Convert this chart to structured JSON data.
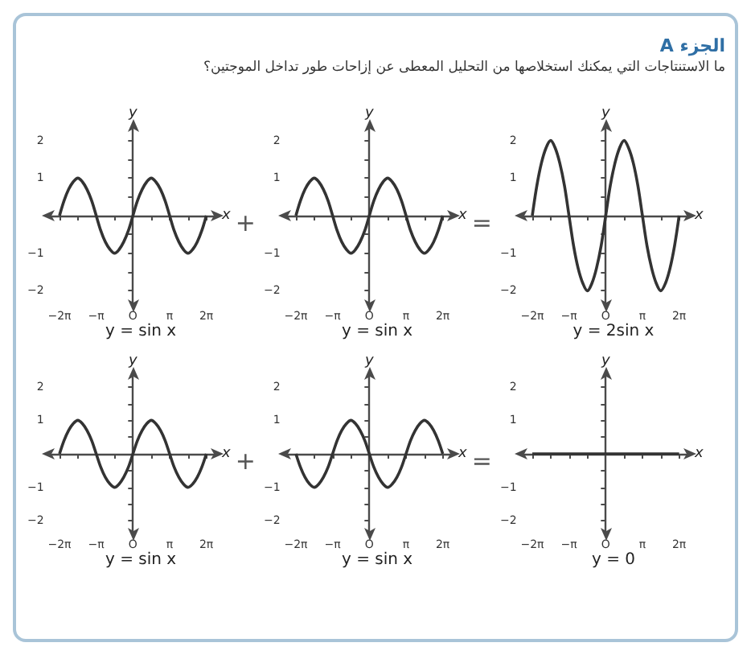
{
  "chart_data": [
    {
      "type": "other",
      "title": "الجزء A",
      "subtitle": "ما الاستنتاجات التي يمكنك استخلاصها من التحليل المعطى عن إزاحات طور تداخل الموجتين؟"
    },
    {
      "type": "line",
      "title": "y = sin x",
      "xlabel": "x",
      "ylabel": "y",
      "marker": "none",
      "annotations": [
        "+"
      ],
      "xlim": [
        -7.2,
        7.2
      ],
      "ylim": [
        -2.4,
        2.4
      ],
      "xticks": [
        {
          "value": -6.28,
          "label": "−2π"
        },
        {
          "value": -4.71,
          "label": null
        },
        {
          "value": -3.14,
          "label": "−π"
        },
        {
          "value": -1.57,
          "label": null
        },
        {
          "value": 0,
          "label": "O"
        },
        {
          "value": 1.57,
          "label": null
        },
        {
          "value": 3.14,
          "label": "π"
        },
        {
          "value": 4.71,
          "label": null
        },
        {
          "value": 6.28,
          "label": "2π"
        }
      ],
      "yticks": [
        {
          "value": -2,
          "label": "−2"
        },
        {
          "value": -1.5,
          "label": null
        },
        {
          "value": -1,
          "label": "−1"
        },
        {
          "value": -0.5,
          "label": null
        },
        {
          "value": 0.5,
          "label": null
        },
        {
          "value": 1,
          "label": "1"
        },
        {
          "value": 1.5,
          "label": null
        },
        {
          "value": 2,
          "label": "2"
        }
      ],
      "x": [
        -6.28,
        -5.89,
        -5.5,
        -5.11,
        -4.71,
        -4.32,
        -3.93,
        -3.53,
        -3.14,
        -2.75,
        -2.36,
        -1.96,
        -1.57,
        -1.18,
        -0.79,
        -0.39,
        0,
        0.39,
        0.79,
        1.18,
        1.57,
        1.96,
        2.36,
        2.75,
        3.14,
        3.53,
        3.93,
        4.32,
        4.71,
        5.11,
        5.5,
        5.89,
        6.28
      ],
      "series": [
        {
          "color": "#333333",
          "values": [
            0,
            0.4,
            0.7,
            0.9,
            1,
            0.9,
            0.7,
            0.4,
            0,
            -0.4,
            -0.7,
            -0.9,
            -1,
            -0.9,
            -0.7,
            -0.4,
            0,
            0.4,
            0.7,
            0.9,
            1,
            0.9,
            0.7,
            0.4,
            0,
            -0.4,
            -0.7,
            -0.9,
            -1,
            -0.9,
            -0.7,
            -0.4,
            0
          ]
        }
      ]
    },
    {
      "type": "line",
      "title": "y = sin x",
      "xlabel": "x",
      "ylabel": "y",
      "marker": "none",
      "annotations": [
        "="
      ],
      "xlim": [
        -7.2,
        7.2
      ],
      "ylim": [
        -2.4,
        2.4
      ],
      "xticks": [
        {
          "value": -6.28,
          "label": "−2π"
        },
        {
          "value": -4.71,
          "label": null
        },
        {
          "value": -3.14,
          "label": "−π"
        },
        {
          "value": -1.57,
          "label": null
        },
        {
          "value": 0,
          "label": "O"
        },
        {
          "value": 1.57,
          "label": null
        },
        {
          "value": 3.14,
          "label": "π"
        },
        {
          "value": 4.71,
          "label": null
        },
        {
          "value": 6.28,
          "label": "2π"
        }
      ],
      "yticks": [
        {
          "value": -2,
          "label": "−2"
        },
        {
          "value": -1.5,
          "label": null
        },
        {
          "value": -1,
          "label": "−1"
        },
        {
          "value": -0.5,
          "label": null
        },
        {
          "value": 0.5,
          "label": null
        },
        {
          "value": 1,
          "label": "1"
        },
        {
          "value": 1.5,
          "label": null
        },
        {
          "value": 2,
          "label": "2"
        }
      ],
      "x": [
        -6.28,
        -5.89,
        -5.5,
        -5.11,
        -4.71,
        -4.32,
        -3.93,
        -3.53,
        -3.14,
        -2.75,
        -2.36,
        -1.96,
        -1.57,
        -1.18,
        -0.79,
        -0.39,
        0,
        0.39,
        0.79,
        1.18,
        1.57,
        1.96,
        2.36,
        2.75,
        3.14,
        3.53,
        3.93,
        4.32,
        4.71,
        5.11,
        5.5,
        5.89,
        6.28
      ],
      "series": [
        {
          "color": "#333333",
          "values": [
            0,
            0.4,
            0.7,
            0.9,
            1,
            0.9,
            0.7,
            0.4,
            0,
            -0.4,
            -0.7,
            -0.9,
            -1,
            -0.9,
            -0.7,
            -0.4,
            0,
            0.4,
            0.7,
            0.9,
            1,
            0.9,
            0.7,
            0.4,
            0,
            -0.4,
            -0.7,
            -0.9,
            -1,
            -0.9,
            -0.7,
            -0.4,
            0
          ]
        }
      ]
    },
    {
      "type": "line",
      "title": "y = 2sin x",
      "xlabel": "x",
      "ylabel": "y",
      "marker": "none",
      "xlim": [
        -7.2,
        7.2
      ],
      "ylim": [
        -2.4,
        2.4
      ],
      "xticks": [
        {
          "value": -6.28,
          "label": "−2π"
        },
        {
          "value": -4.71,
          "label": null
        },
        {
          "value": -3.14,
          "label": "−π"
        },
        {
          "value": -1.57,
          "label": null
        },
        {
          "value": 0,
          "label": "O"
        },
        {
          "value": 1.57,
          "label": null
        },
        {
          "value": 3.14,
          "label": "π"
        },
        {
          "value": 4.71,
          "label": null
        },
        {
          "value": 6.28,
          "label": "2π"
        }
      ],
      "yticks": [
        {
          "value": -2,
          "label": "−2"
        },
        {
          "value": -1.5,
          "label": null
        },
        {
          "value": -1,
          "label": "−1"
        },
        {
          "value": -0.5,
          "label": null
        },
        {
          "value": 0.5,
          "label": null
        },
        {
          "value": 1,
          "label": "1"
        },
        {
          "value": 1.5,
          "label": null
        },
        {
          "value": 2,
          "label": "2"
        }
      ],
      "x": [
        -6.28,
        -5.89,
        -5.5,
        -5.11,
        -4.71,
        -4.32,
        -3.93,
        -3.53,
        -3.14,
        -2.75,
        -2.36,
        -1.96,
        -1.57,
        -1.18,
        -0.79,
        -0.39,
        0,
        0.39,
        0.79,
        1.18,
        1.57,
        1.96,
        2.36,
        2.75,
        3.14,
        3.53,
        3.93,
        4.32,
        4.71,
        5.11,
        5.5,
        5.89,
        6.28
      ],
      "series": [
        {
          "color": "#333333",
          "values": [
            0,
            0.8,
            1.4,
            1.8,
            2,
            1.8,
            1.4,
            0.8,
            0,
            -0.8,
            -1.4,
            -1.8,
            -2,
            -1.8,
            -1.4,
            -0.8,
            0,
            0.8,
            1.4,
            1.8,
            2,
            1.8,
            1.4,
            0.8,
            0,
            -0.8,
            -1.4,
            -1.8,
            -2,
            -1.8,
            -1.4,
            -0.8,
            0
          ]
        }
      ]
    },
    {
      "type": "line",
      "title": "y = sin x",
      "xlabel": "x",
      "ylabel": "y",
      "marker": "none",
      "annotations": [
        "+"
      ],
      "xlim": [
        -7.2,
        7.2
      ],
      "ylim": [
        -2.4,
        2.4
      ],
      "xticks": [
        {
          "value": -6.28,
          "label": "−2π"
        },
        {
          "value": -4.71,
          "label": null
        },
        {
          "value": -3.14,
          "label": "−π"
        },
        {
          "value": -1.57,
          "label": null
        },
        {
          "value": 0,
          "label": "O"
        },
        {
          "value": 1.57,
          "label": null
        },
        {
          "value": 3.14,
          "label": "π"
        },
        {
          "value": 4.71,
          "label": null
        },
        {
          "value": 6.28,
          "label": "2π"
        }
      ],
      "yticks": [
        {
          "value": -2,
          "label": "−2"
        },
        {
          "value": -1.5,
          "label": null
        },
        {
          "value": -1,
          "label": "−1"
        },
        {
          "value": -0.5,
          "label": null
        },
        {
          "value": 0.5,
          "label": null
        },
        {
          "value": 1,
          "label": "1"
        },
        {
          "value": 1.5,
          "label": null
        },
        {
          "value": 2,
          "label": "2"
        }
      ],
      "x": [
        -6.28,
        -5.89,
        -5.5,
        -5.11,
        -4.71,
        -4.32,
        -3.93,
        -3.53,
        -3.14,
        -2.75,
        -2.36,
        -1.96,
        -1.57,
        -1.18,
        -0.79,
        -0.39,
        0,
        0.39,
        0.79,
        1.18,
        1.57,
        1.96,
        2.36,
        2.75,
        3.14,
        3.53,
        3.93,
        4.32,
        4.71,
        5.11,
        5.5,
        5.89,
        6.28
      ],
      "series": [
        {
          "color": "#333333",
          "values": [
            0,
            0.4,
            0.7,
            0.9,
            1,
            0.9,
            0.7,
            0.4,
            0,
            -0.4,
            -0.7,
            -0.9,
            -1,
            -0.9,
            -0.7,
            -0.4,
            0,
            0.4,
            0.7,
            0.9,
            1,
            0.9,
            0.7,
            0.4,
            0,
            -0.4,
            -0.7,
            -0.9,
            -1,
            -0.9,
            -0.7,
            -0.4,
            0
          ]
        }
      ]
    },
    {
      "type": "line",
      "title": "y = sin x",
      "xlabel": "x",
      "ylabel": "y",
      "marker": "none",
      "annotations": [
        "="
      ],
      "xlim": [
        -7.2,
        7.2
      ],
      "ylim": [
        -2.4,
        2.4
      ],
      "xticks": [
        {
          "value": -6.28,
          "label": "−2π"
        },
        {
          "value": -4.71,
          "label": null
        },
        {
          "value": -3.14,
          "label": "−π"
        },
        {
          "value": -1.57,
          "label": null
        },
        {
          "value": 0,
          "label": "O"
        },
        {
          "value": 1.57,
          "label": null
        },
        {
          "value": 3.14,
          "label": "π"
        },
        {
          "value": 4.71,
          "label": null
        },
        {
          "value": 6.28,
          "label": "2π"
        }
      ],
      "yticks": [
        {
          "value": -2,
          "label": "−2"
        },
        {
          "value": -1.5,
          "label": null
        },
        {
          "value": -1,
          "label": "−1"
        },
        {
          "value": -0.5,
          "label": null
        },
        {
          "value": 0.5,
          "label": null
        },
        {
          "value": 1,
          "label": "1"
        },
        {
          "value": 1.5,
          "label": null
        },
        {
          "value": 2,
          "label": "2"
        }
      ],
      "x": [
        -6.28,
        -5.89,
        -5.5,
        -5.11,
        -4.71,
        -4.32,
        -3.93,
        -3.53,
        -3.14,
        -2.75,
        -2.36,
        -1.96,
        -1.57,
        -1.18,
        -0.79,
        -0.39,
        0,
        0.39,
        0.79,
        1.18,
        1.57,
        1.96,
        2.36,
        2.75,
        3.14,
        3.53,
        3.93,
        4.32,
        4.71,
        5.11,
        5.5,
        5.89,
        6.28
      ],
      "series": [
        {
          "color": "#333333",
          "values": [
            0,
            -0.4,
            -0.7,
            -0.9,
            -1,
            -0.9,
            -0.7,
            -0.4,
            0,
            0.4,
            0.7,
            0.9,
            1,
            0.9,
            0.7,
            0.4,
            0,
            -0.4,
            -0.7,
            -0.9,
            -1,
            -0.9,
            -0.7,
            -0.4,
            0,
            0.4,
            0.7,
            0.9,
            1,
            0.9,
            0.7,
            0.4,
            0
          ]
        }
      ]
    },
    {
      "type": "line",
      "title": "y = 0",
      "xlabel": "x",
      "ylabel": "y",
      "marker": "none",
      "xlim": [
        -7.2,
        7.2
      ],
      "ylim": [
        -2.4,
        2.4
      ],
      "xticks": [
        {
          "value": -6.28,
          "label": "−2π"
        },
        {
          "value": -4.71,
          "label": null
        },
        {
          "value": -3.14,
          "label": "−π"
        },
        {
          "value": -1.57,
          "label": null
        },
        {
          "value": 0,
          "label": "O"
        },
        {
          "value": 1.57,
          "label": null
        },
        {
          "value": 3.14,
          "label": "π"
        },
        {
          "value": 4.71,
          "label": null
        },
        {
          "value": 6.28,
          "label": "2π"
        }
      ],
      "yticks": [
        {
          "value": -2,
          "label": "−2"
        },
        {
          "value": -1.5,
          "label": null
        },
        {
          "value": -1,
          "label": "−1"
        },
        {
          "value": -0.5,
          "label": null
        },
        {
          "value": 0.5,
          "label": null
        },
        {
          "value": 1,
          "label": "1"
        },
        {
          "value": 1.5,
          "label": null
        },
        {
          "value": 2,
          "label": "2"
        }
      ],
      "x": [
        -6.28,
        -3.14,
        0,
        3.14,
        6.28
      ],
      "series": [
        {
          "color": "#333333",
          "values": [
            0,
            0,
            0,
            0,
            0
          ]
        }
      ]
    }
  ]
}
